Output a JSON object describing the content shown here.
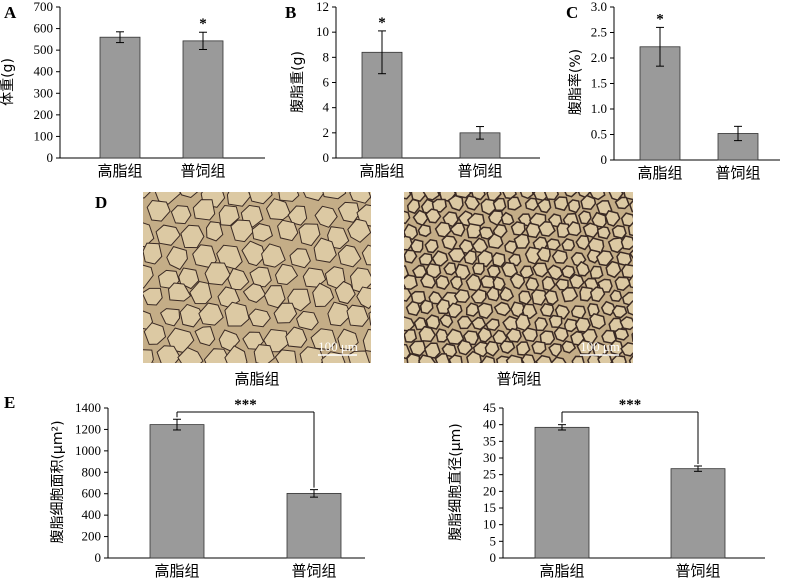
{
  "panels": {
    "A": "A",
    "B": "B",
    "C": "C",
    "D": "D",
    "E": "E"
  },
  "chart_data": [
    {
      "id": "A",
      "type": "bar",
      "categories": [
        "高脂组",
        "普饲组"
      ],
      "values": [
        560,
        543
      ],
      "errors": [
        25,
        40
      ],
      "significance": [
        "",
        "*"
      ],
      "ylabel": "体重(g)",
      "ylim": [
        0,
        700
      ],
      "yticks": [
        0,
        100,
        200,
        300,
        400,
        500,
        600,
        700
      ],
      "tick_labels": [
        "0",
        "100",
        "200",
        "300",
        "400",
        "500",
        "600",
        "700"
      ]
    },
    {
      "id": "B",
      "type": "bar",
      "categories": [
        "高脂组",
        "普饲组"
      ],
      "values": [
        8.4,
        2.0
      ],
      "errors": [
        1.7,
        0.5
      ],
      "significance": [
        "*",
        ""
      ],
      "ylabel": "腹脂重(g)",
      "ylim": [
        0,
        12
      ],
      "yticks": [
        0,
        2,
        4,
        6,
        8,
        10,
        12
      ],
      "tick_labels": [
        "0",
        "2",
        "4",
        "6",
        "8",
        "10",
        "12"
      ]
    },
    {
      "id": "C",
      "type": "bar",
      "categories": [
        "高脂组",
        "普饲组"
      ],
      "values": [
        2.22,
        0.52
      ],
      "errors": [
        0.38,
        0.14
      ],
      "significance": [
        "*",
        ""
      ],
      "ylabel": "腹脂率(%)",
      "ylim": [
        0,
        3.0
      ],
      "yticks": [
        0,
        0.5,
        1.0,
        1.5,
        2.0,
        2.5,
        3.0
      ],
      "tick_labels": [
        "0",
        "0.5",
        "1.0",
        "1.5",
        "2.0",
        "2.5",
        "3.0"
      ]
    },
    {
      "id": "E1",
      "type": "bar",
      "categories": [
        "高脂组",
        "普饲组"
      ],
      "values": [
        1245,
        603
      ],
      "errors": [
        50,
        35
      ],
      "bracket": "***",
      "ylabel": "腹脂细胞面积(μm²)",
      "ylim": [
        0,
        1400
      ],
      "yticks": [
        0,
        200,
        400,
        600,
        800,
        1000,
        1200,
        1400
      ],
      "tick_labels": [
        "0",
        "200",
        "400",
        "600",
        "800",
        "1000",
        "1200",
        "1400"
      ]
    },
    {
      "id": "E2",
      "type": "bar",
      "categories": [
        "高脂组",
        "普饲组"
      ],
      "values": [
        39.2,
        26.8
      ],
      "errors": [
        0.8,
        0.8
      ],
      "bracket": "***",
      "ylabel": "腹脂细胞直径(μm)",
      "ylim": [
        0,
        45
      ],
      "yticks": [
        0,
        5,
        10,
        15,
        20,
        25,
        30,
        35,
        40,
        45
      ],
      "tick_labels": [
        "0",
        "5",
        "10",
        "15",
        "20",
        "25",
        "30",
        "35",
        "40",
        "45"
      ]
    }
  ],
  "histology": {
    "left_caption": "高脂组",
    "right_caption": "普饲组",
    "scale_label": "100 μm"
  },
  "colors": {
    "bar": "#9a9a9a",
    "tissue_bg": "#c4ad87",
    "cell_fill": "#dcc9a3",
    "membrane": "#3a2a24"
  }
}
